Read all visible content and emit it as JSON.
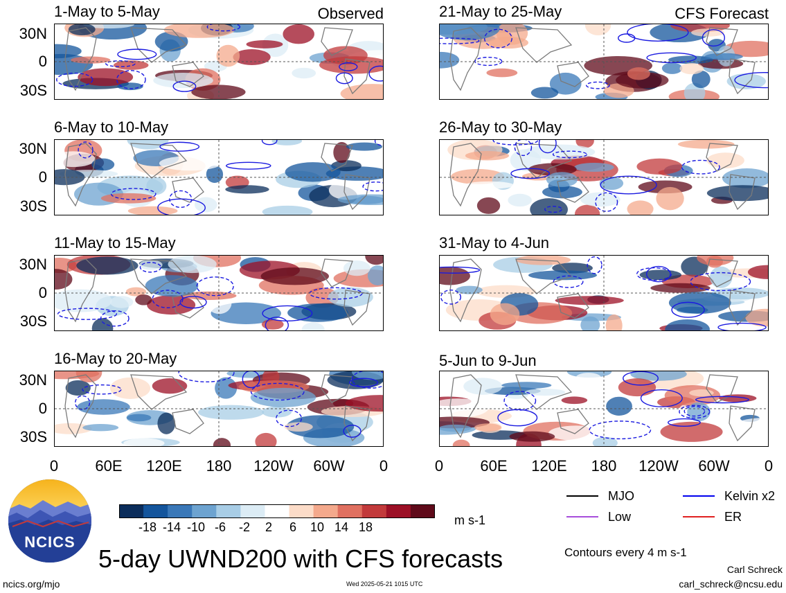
{
  "panels_left": [
    {
      "title": "1-May to 5-May",
      "tag": "Observed"
    },
    {
      "title": "6-May to 10-May",
      "tag": ""
    },
    {
      "title": "11-May to 15-May",
      "tag": ""
    },
    {
      "title": "16-May to 20-May",
      "tag": ""
    }
  ],
  "panels_right": [
    {
      "title": "21-May to 25-May",
      "tag": "CFS Forecast"
    },
    {
      "title": "26-May to 30-May",
      "tag": ""
    },
    {
      "title": "31-May to 4-Jun",
      "tag": ""
    },
    {
      "title": "5-Jun to 9-Jun",
      "tag": ""
    }
  ],
  "lat_labels": [
    "30N",
    "0",
    "30S"
  ],
  "lon_labels": [
    "0",
    "60E",
    "120E",
    "180",
    "120W",
    "60W",
    "0"
  ],
  "colorbar": {
    "tick_labels": [
      "-18",
      "-14",
      "-10",
      "-6",
      "-2",
      "2",
      "6",
      "10",
      "14",
      "18"
    ],
    "colors": [
      "#0b2d5b",
      "#14559c",
      "#3a78b8",
      "#6da3d0",
      "#a8cde6",
      "#dcecf5",
      "#ffffff",
      "#fcdcc8",
      "#f4a98c",
      "#e07060",
      "#c23a3b",
      "#9c1026",
      "#5f0a1a"
    ],
    "units": "m s-1"
  },
  "legend": [
    {
      "label": "MJO",
      "color": "#000000"
    },
    {
      "label": "Kelvin x2",
      "color": "#0000ee"
    },
    {
      "label": "Low",
      "color": "#a64ddb"
    },
    {
      "label": "ER",
      "color": "#e02020"
    }
  ],
  "contour_note": "Contours every 4 m s-1",
  "main_title": "5-day UWND200 with CFS forecasts",
  "logo_text": "NCICS",
  "footer": {
    "site": "ncics.org/mjo",
    "timestamp": "Wed 2025-05-21 1015 UTC",
    "author": "Carl Schreck",
    "email": "carl_schreck@ncsu.edu"
  }
}
